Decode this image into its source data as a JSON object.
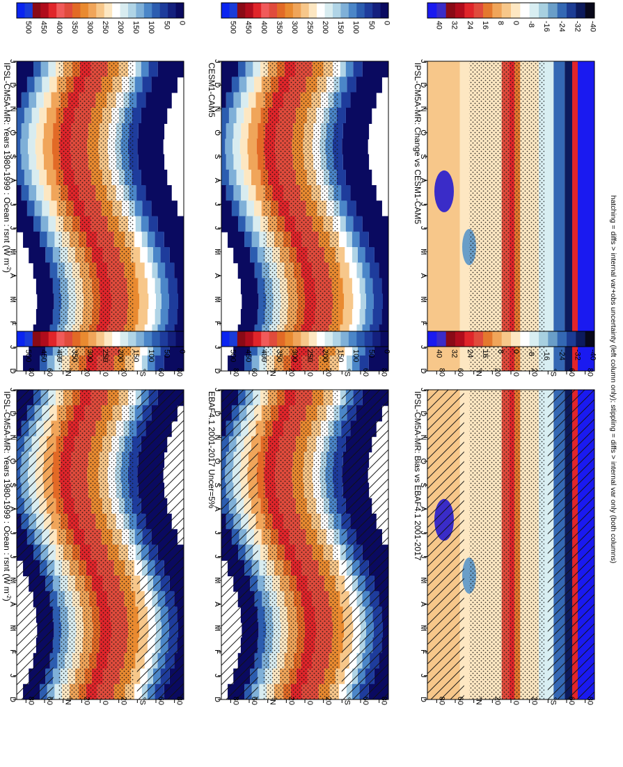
{
  "footer_note": "hatching = diffs > internal var+obs uncertainty (left column only); stippling = diffs > internal var only (both columns)",
  "chart_data": [
    {
      "type": "heatmap",
      "panel": "top-left",
      "title": "IPSL-CM5A-MR: Years 1980-1999 : Ocean : rsnt (W m",
      "title_sup": "-2",
      "title_end": ")",
      "x_ticks": [
        "D",
        "J",
        "F",
        "M",
        "A",
        "M",
        "J",
        "J",
        "A",
        "S",
        "O",
        "N",
        "D",
        "J"
      ],
      "y_ticks": [
        "80",
        "60",
        "°N",
        "20",
        "0",
        "20",
        "°S",
        "60",
        "80"
      ],
      "colorbar_ticks": [
        "500",
        "450",
        "400",
        "350",
        "300",
        "250",
        "200",
        "150",
        "100",
        "50",
        "0"
      ],
      "field": "absolute",
      "hatching": true,
      "stippling": true
    },
    {
      "type": "heatmap",
      "panel": "top-right",
      "title": "IPSL-CM5A-MR: Years 1980-1999 : Ocean : rsnt (W m",
      "title_sup": "-2",
      "title_end": ")",
      "x_ticks": [
        "D",
        "J",
        "F",
        "M",
        "A",
        "M",
        "J",
        "J",
        "A",
        "S",
        "O",
        "N",
        "D",
        "J"
      ],
      "y_ticks": [
        "80",
        "60",
        "°N",
        "20",
        "0",
        "20",
        "°S",
        "60",
        "80"
      ],
      "colorbar_ticks": [
        "500",
        "450",
        "400",
        "350",
        "300",
        "250",
        "200",
        "150",
        "100",
        "50",
        "0"
      ],
      "field": "absolute",
      "hatching": false,
      "stippling": true
    },
    {
      "type": "heatmap",
      "panel": "middle-left",
      "title": "EBAF4.1 2001-2017 Uncer=5%",
      "x_ticks": [
        "D",
        "J",
        "F",
        "M",
        "A",
        "M",
        "J",
        "J",
        "A",
        "S",
        "O",
        "N",
        "D",
        "J"
      ],
      "y_ticks": [
        "80",
        "60",
        "°N",
        "20",
        "0",
        "20",
        "°S",
        "60",
        "80"
      ],
      "colorbar_ticks": [
        "500",
        "450",
        "400",
        "350",
        "300",
        "250",
        "200",
        "150",
        "100",
        "50",
        "0"
      ],
      "field": "absolute",
      "hatching": true,
      "stippling": true
    },
    {
      "type": "heatmap",
      "panel": "middle-right",
      "title": "CESM1-CAM5",
      "x_ticks": [
        "D",
        "J",
        "F",
        "M",
        "A",
        "M",
        "J",
        "J",
        "A",
        "S",
        "O",
        "N",
        "D",
        "J"
      ],
      "y_ticks": [
        "80",
        "60",
        "°N",
        "20",
        "0",
        "20",
        "°S",
        "60",
        "80"
      ],
      "colorbar_ticks": [
        "500",
        "450",
        "400",
        "350",
        "300",
        "250",
        "200",
        "150",
        "100",
        "50",
        "0"
      ],
      "field": "absolute",
      "hatching": false,
      "stippling": true
    },
    {
      "type": "heatmap",
      "panel": "bottom-left",
      "title": "IPSL-CM5A-MR: Bias vs EBAF4.1 2001-2017",
      "x_ticks": [
        "D",
        "J",
        "F",
        "M",
        "A",
        "M",
        "J",
        "J",
        "A",
        "S",
        "O",
        "N",
        "D",
        "J"
      ],
      "y_ticks": [
        "80",
        "60",
        "°N",
        "20",
        "0",
        "20",
        "°S",
        "60",
        "80"
      ],
      "colorbar_ticks": [
        "40",
        "32",
        "24",
        "16",
        "8",
        "0",
        "-8",
        "-16",
        "-24",
        "-32",
        "-40"
      ],
      "field": "difference",
      "hatching": true,
      "stippling": true
    },
    {
      "type": "heatmap",
      "panel": "bottom-right",
      "title": "IPSL-CM5A-MR: Change vs CESM1-CAM5",
      "x_ticks": [
        "D",
        "J",
        "F",
        "M",
        "A",
        "M",
        "J",
        "J",
        "A",
        "S",
        "O",
        "N",
        "D",
        "J"
      ],
      "y_ticks": [
        "80",
        "60",
        "°N",
        "20",
        "0",
        "20",
        "°S",
        "60",
        "80"
      ],
      "colorbar_ticks": [
        "40",
        "32",
        "24",
        "16",
        "8",
        "0",
        "-8",
        "-16",
        "-24",
        "-32",
        "-40"
      ],
      "field": "difference",
      "hatching": false,
      "stippling": true
    }
  ],
  "colors": {
    "absolute_scale": [
      "#0a0a60",
      "#14207e",
      "#1e3c9c",
      "#2c5db0",
      "#4b86c8",
      "#7fb0d8",
      "#b0d4e6",
      "#d8ecf0",
      "#ffffff",
      "#fde7c2",
      "#f7c78a",
      "#f0a55a",
      "#e98a30",
      "#e26a26",
      "#e04b3c",
      "#f05a5a",
      "#e0252a",
      "#b00c1c",
      "#8a0a16",
      "#1a3cd8",
      "#0a24f0"
    ],
    "difference_scale": [
      "#08081a",
      "#0c1a5c",
      "#1c3c94",
      "#3468b4",
      "#6a9ec8",
      "#a8d0e0",
      "#d8eef2",
      "#ffffff",
      "#fde7c2",
      "#f7c78a",
      "#f0a55a",
      "#e4782e",
      "#e04b3c",
      "#e0252a",
      "#b00c1c",
      "#8a0a16",
      "#3a2cc8",
      "#1a1af0"
    ]
  }
}
